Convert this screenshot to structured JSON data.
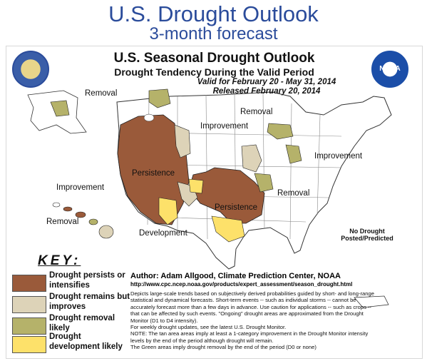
{
  "slide": {
    "title": "U.S. Drought Outlook",
    "subtitle": "3-month forecast"
  },
  "map": {
    "title": "U.S. Seasonal Drought Outlook",
    "subtitle": "Drought Tendency During the Valid Period",
    "valid": "Valid for February 20 - May 31, 2014",
    "released": "Released February 20, 2014",
    "labels": {
      "removal_ak": "Removal",
      "removal_north": "Removal",
      "removal_central": "Removal",
      "removal_hi": "Removal",
      "improvement_north": "Improvement",
      "improvement_east": "Improvement",
      "improvement_hi": "Improvement",
      "persistence_west": "Persistence",
      "persistence_south": "Persistence",
      "development": "Development",
      "pr_note": "No Drought Posted/Predicted"
    }
  },
  "logos": {
    "commerce": "commerce-seal-icon",
    "noaa": "NOAA"
  },
  "key": {
    "title": "KEY:",
    "items": [
      {
        "label": "Drought persists or intensifies",
        "color": "#9a5a3a"
      },
      {
        "label": "Drought remains but improves",
        "color": "#ddd3b8"
      },
      {
        "label": "Drought removal likely",
        "color": "#b5b26a"
      },
      {
        "label": "Drought development likely",
        "color": "#fde16a"
      }
    ]
  },
  "footer": {
    "author": "Author: Adam Allgood, Climate Prediction Center, NOAA",
    "url": "http://www.cpc.ncep.noaa.gov/products/expert_assessment/season_drought.html",
    "description": "Depicts large-scale trends based on subjectively derived probabilities guided by short- and long-range statistical and dynamical forecasts. Short-term events -- such as individual storms -- cannot be accurately forecast more than a few days in advance. Use caution for applications -- such as crops -- that can be affected by such events. \"Ongoing\" drought areas are approximated from the Drought Monitor (D1 to D4 intensity).",
    "weekly": "For weekly drought updates, see the latest U.S. Drought Monitor.",
    "note": "NOTE: The tan area areas imply at least a 1-category improvement in the Drought Monitor intensity levels by the end of the period although drought will remain.",
    "green": "The Green areas imply drought removal by the end of the period (D0 or none)"
  },
  "colors": {
    "title_blue": "#2b4c9b",
    "persist": "#9a5a3a",
    "improve": "#ddd3b8",
    "removal": "#b5b26a",
    "develop": "#fde16a"
  }
}
